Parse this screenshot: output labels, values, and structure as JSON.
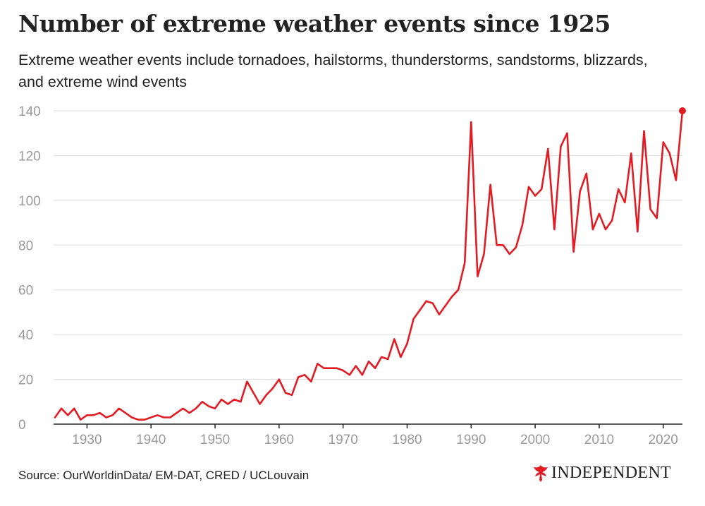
{
  "title": "Number of extreme weather events since 1925",
  "subtitle": "Extreme weather events include tornadoes, hailstorms, thunderstorms, sandstorms, blizzards, and extreme wind events",
  "source": "Source: OurWorldinData/ EM-DAT, CRED / UCLouvain",
  "brand": {
    "name": "INDEPENDENT",
    "logo_icon": "eagle-icon",
    "logo_color": "#e31b23"
  },
  "colors": {
    "line": "#e31b23",
    "grid": "#dddddd",
    "axis": "#222222",
    "tick": "#9a9a9a"
  },
  "chart_data": {
    "type": "line",
    "title": "Number of extreme weather events since 1925",
    "xlabel": "",
    "ylabel": "",
    "xlim": [
      1925,
      2023
    ],
    "ylim": [
      0,
      140
    ],
    "xticks": [
      1930,
      1940,
      1950,
      1960,
      1970,
      1980,
      1990,
      2000,
      2010,
      2020
    ],
    "yticks": [
      0,
      20,
      40,
      60,
      80,
      100,
      120,
      140
    ],
    "grid": true,
    "end_marker": true,
    "series": [
      {
        "name": "Extreme weather events",
        "x": [
          1925,
          1926,
          1927,
          1928,
          1929,
          1930,
          1931,
          1932,
          1933,
          1934,
          1935,
          1936,
          1937,
          1938,
          1939,
          1940,
          1941,
          1942,
          1943,
          1944,
          1945,
          1946,
          1947,
          1948,
          1949,
          1950,
          1951,
          1952,
          1953,
          1954,
          1955,
          1956,
          1957,
          1958,
          1959,
          1960,
          1961,
          1962,
          1963,
          1964,
          1965,
          1966,
          1967,
          1968,
          1969,
          1970,
          1971,
          1972,
          1973,
          1974,
          1975,
          1976,
          1977,
          1978,
          1979,
          1980,
          1981,
          1982,
          1983,
          1984,
          1985,
          1986,
          1987,
          1988,
          1989,
          1990,
          1991,
          1992,
          1993,
          1994,
          1995,
          1996,
          1997,
          1998,
          1999,
          2000,
          2001,
          2002,
          2003,
          2004,
          2005,
          2006,
          2007,
          2008,
          2009,
          2010,
          2011,
          2012,
          2013,
          2014,
          2015,
          2016,
          2017,
          2018,
          2019,
          2020,
          2021,
          2022,
          2023
        ],
        "values": [
          3,
          7,
          4,
          7,
          2,
          4,
          4,
          5,
          3,
          4,
          7,
          5,
          3,
          2,
          2,
          3,
          4,
          3,
          3,
          5,
          7,
          5,
          7,
          10,
          8,
          7,
          11,
          9,
          11,
          10,
          19,
          14,
          9,
          13,
          16,
          20,
          14,
          13,
          21,
          22,
          19,
          27,
          25,
          25,
          25,
          24,
          22,
          26,
          22,
          28,
          25,
          30,
          29,
          38,
          30,
          36,
          47,
          51,
          55,
          54,
          49,
          53,
          57,
          60,
          72,
          135,
          66,
          76,
          107,
          80,
          80,
          76,
          79,
          89,
          106,
          102,
          105,
          123,
          87,
          124,
          130,
          77,
          104,
          112,
          87,
          94,
          87,
          91,
          105,
          99,
          121,
          86,
          131,
          96,
          92,
          126,
          121,
          109,
          140
        ]
      }
    ]
  }
}
